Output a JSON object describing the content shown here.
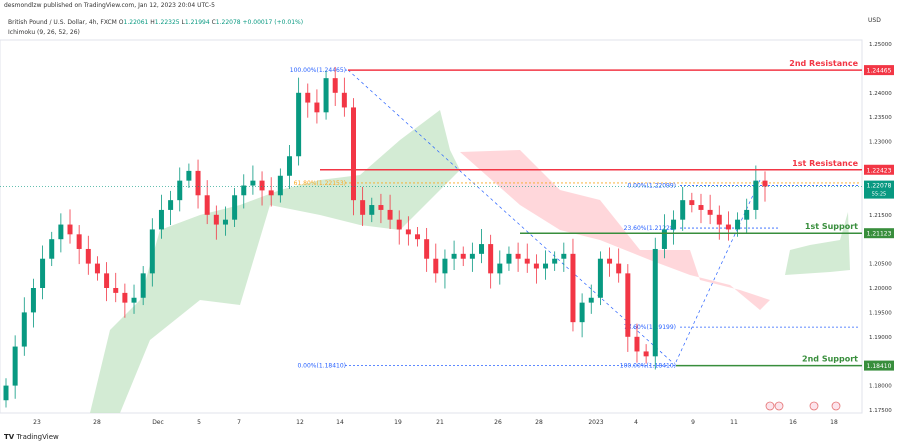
{
  "header": {
    "published": "desmondlzw published on TradingView.com, Jan 12, 2023 20:04 UTC-5"
  },
  "legend": {
    "symbol": "British Pound / U.S. Dollar, 4h, FXCM",
    "open_label": "O",
    "open": "1.22061",
    "high_label": "H",
    "high": "1.22325",
    "low_label": "L",
    "low": "1.21994",
    "close_label": "C",
    "close": "1.22078",
    "change": "+0.00017 (+0.01%)",
    "indicator": "Ichimoku (9, 26, 52, 26)"
  },
  "footer": {
    "brand": "TradingView"
  },
  "colors": {
    "up": "#089981",
    "down": "#f23645",
    "resistance": "#f23645",
    "support": "#388e3c",
    "fib": "#2962ff",
    "cloud_bull": "#c8e6c9",
    "cloud_bear": "#ffcdd2"
  },
  "chart_data": {
    "type": "candlestick",
    "currency": "USD",
    "ylim": [
      1.175,
      1.252
    ],
    "y_ticks": [
      "1.25000",
      "1.24000",
      "1.23500",
      "1.23000",
      "1.21500",
      "1.20500",
      "1.20000",
      "1.19500",
      "1.19000",
      "1.18000",
      "1.17500"
    ],
    "x_ticks": [
      "23",
      "28",
      "Dec",
      "5",
      "7",
      "12",
      "14",
      "19",
      "21",
      "26",
      "28",
      "2023",
      "4",
      "9",
      "11",
      "16",
      "18"
    ],
    "closes": [
      1.18,
      1.188,
      1.195,
      1.2,
      1.206,
      1.21,
      1.213,
      1.211,
      1.208,
      1.205,
      1.203,
      1.2,
      1.199,
      1.197,
      1.198,
      1.203,
      1.212,
      1.216,
      1.218,
      1.222,
      1.224,
      1.219,
      1.215,
      1.213,
      1.214,
      1.219,
      1.221,
      1.222,
      1.22,
      1.219,
      1.223,
      1.227,
      1.24,
      1.238,
      1.236,
      1.243,
      1.24,
      1.237,
      1.218,
      1.215,
      1.217,
      1.216,
      1.214,
      1.212,
      1.211,
      1.21,
      1.206,
      1.203,
      1.206,
      1.207,
      1.206,
      1.207,
      1.209,
      1.203,
      1.205,
      1.207,
      1.206,
      1.205,
      1.204,
      1.205,
      1.206,
      1.207,
      1.193,
      1.197,
      1.198,
      1.206,
      1.205,
      1.203,
      1.19,
      1.187,
      1.186,
      1.208,
      1.212,
      1.214,
      1.218,
      1.217,
      1.216,
      1.215,
      1.213,
      1.212,
      1.214,
      1.216,
      1.222,
      1.2208
    ],
    "levels": [
      {
        "label": "2nd Resistance",
        "price": "1.24465",
        "value": 1.24465,
        "kind": "resistance"
      },
      {
        "label": "1st Resistance",
        "price": "1.22423",
        "value": 1.22423,
        "kind": "resistance"
      },
      {
        "label": "1st Support",
        "price": "1.21123",
        "value": 1.21123,
        "kind": "support"
      },
      {
        "label": "2nd Support",
        "price": "1.18410",
        "value": 1.1841,
        "kind": "support"
      }
    ],
    "current_price": {
      "price": "1.22078",
      "value": 1.22078,
      "countdown": "55:25"
    },
    "fib_labels": [
      "100.00%(1.24465)",
      "61.80%(1.22153)",
      "0.00%(1.18410)",
      "0.00%(1.22099)",
      "23.60%(1.21228)",
      "78.60%(1.19199)",
      "100.00%(1.18410)"
    ]
  }
}
